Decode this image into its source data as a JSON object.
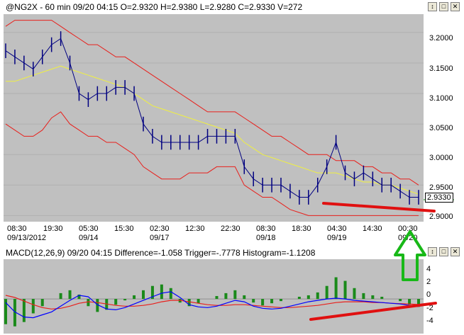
{
  "price_window": {
    "title": "@NG2X - 60 min 09/20 04:15 O=2.9320 H=2.9380 L=2.9280 C=2.9330 V=272",
    "y_ticks": [
      "3.2000",
      "3.1500",
      "3.1000",
      "3.0500",
      "3.0000",
      "2.9500",
      "2.9000"
    ],
    "last_price": "2.9330",
    "x_ticks": [
      "08:30",
      "19:30",
      "05:30",
      "15:30",
      "02:30",
      "12:30",
      "22:30",
      "08:30",
      "18:30",
      "04:30",
      "14:30",
      "00:30"
    ],
    "x_dates": [
      "09/13/2012",
      "09/14",
      "09/17",
      "09/18",
      "09/19",
      "09/20"
    ]
  },
  "macd_window": {
    "title": "MACD(12,26,9) 09/20 04:15 Difference=-1.058 Trigger=-.7778 Histogram=-1.1208",
    "y_ticks": [
      "4",
      "2",
      "0",
      "-2",
      "-4"
    ]
  },
  "buttons": {
    "scroll": "↕",
    "maximize": "□",
    "close": "✕"
  },
  "colors": {
    "plot_bg": "#c0c0c0",
    "price": "#000080",
    "bands": "#e8201c",
    "ma": "#f0f040",
    "macd": "#0000ff",
    "trigger": "#e8201c",
    "hist": "#1a8a1a",
    "annot_red": "#e01010",
    "annot_green": "#18b818"
  },
  "chart_data": [
    {
      "type": "line",
      "title": "@NG2X - 60 min",
      "ylim": [
        2.89,
        3.23
      ],
      "series": [
        {
          "values": [
            3.17,
            3.16,
            3.15,
            3.14,
            3.16,
            3.18,
            3.19,
            3.15,
            3.1,
            3.09,
            3.1,
            3.1,
            3.11,
            3.11,
            3.1,
            3.05,
            3.03,
            3.02,
            3.02,
            3.02,
            3.02,
            3.02,
            3.03,
            3.03,
            3.03,
            3.03,
            2.98,
            2.96,
            2.95,
            2.95,
            2.95,
            2.94,
            2.93,
            2.93,
            2.95,
            2.98,
            3.02,
            2.97,
            2.96,
            2.97,
            2.96,
            2.95,
            2.95,
            2.94,
            2.93,
            2.93
          ]
        },
        {
          "values": [
            3.21,
            3.22,
            3.22,
            3.22,
            3.22,
            3.22,
            3.21,
            3.2,
            3.19,
            3.18,
            3.18,
            3.17,
            3.16,
            3.16,
            3.15,
            3.14,
            3.13,
            3.12,
            3.11,
            3.1,
            3.09,
            3.08,
            3.07,
            3.07,
            3.07,
            3.07,
            3.06,
            3.05,
            3.04,
            3.03,
            3.03,
            3.02,
            3.01,
            3.0,
            3.0,
            3.0,
            2.99,
            2.99,
            2.99,
            2.98,
            2.98,
            2.97,
            2.97,
            2.96,
            2.96,
            2.95
          ]
        },
        {
          "values": [
            3.12,
            3.12,
            3.125,
            3.13,
            3.135,
            3.14,
            3.145,
            3.14,
            3.135,
            3.13,
            3.125,
            3.12,
            3.115,
            3.11,
            3.1,
            3.09,
            3.08,
            3.075,
            3.07,
            3.065,
            3.06,
            3.055,
            3.05,
            3.045,
            3.04,
            3.035,
            3.02,
            3.01,
            3.0,
            2.995,
            2.99,
            2.985,
            2.98,
            2.975,
            2.97,
            2.97,
            2.97,
            2.965,
            2.96,
            2.955,
            2.955,
            2.95,
            2.95,
            2.945,
            2.94,
            2.935
          ]
        },
        {
          "values": [
            3.05,
            3.04,
            3.03,
            3.03,
            3.04,
            3.06,
            3.07,
            3.05,
            3.04,
            3.03,
            3.03,
            3.02,
            3.02,
            3.01,
            3.0,
            2.98,
            2.97,
            2.96,
            2.96,
            2.96,
            2.97,
            2.97,
            2.97,
            2.98,
            2.98,
            2.98,
            2.95,
            2.94,
            2.93,
            2.93,
            2.92,
            2.91,
            2.905,
            2.9,
            2.9,
            2.9,
            2.9,
            2.9,
            2.9,
            2.9,
            2.9,
            2.9,
            2.9,
            2.9,
            2.9,
            2.9
          ]
        }
      ]
    },
    {
      "type": "bar",
      "title": "MACD(12,26,9)",
      "ylim": [
        -4.8,
        5.5
      ],
      "series": [
        {
          "values": [
            -3.5,
            -3.8,
            -3.2,
            -2.0,
            -1.0,
            0,
            0.8,
            1.2,
            0.6,
            -1.0,
            -1.8,
            -1.5,
            -0.8,
            -0.2,
            0.5,
            1.2,
            1.8,
            2.0,
            1.5,
            -0.5,
            -1.0,
            -0.6,
            0,
            0.4,
            0.8,
            1.2,
            0.5,
            -0.5,
            -0.9,
            -0.6,
            -0.3,
            0,
            0.3,
            0.5,
            0.9,
            1.8,
            3.0,
            2.5,
            1.5,
            0.8,
            0.5,
            0.3,
            0,
            -0.3,
            -0.8,
            -1.1
          ]
        },
        {
          "values": [
            -0.5,
            -1.8,
            -2.5,
            -2.6,
            -2.2,
            -1.8,
            -1.0,
            -0.2,
            0.5,
            0.3,
            -0.8,
            -1.4,
            -1.5,
            -1.2,
            -0.7,
            -0.2,
            0.3,
            0.8,
            1.0,
            0.2,
            -0.8,
            -1.1,
            -1.2,
            -1.0,
            -0.6,
            -0.2,
            -0.4,
            -1.0,
            -1.3,
            -1.4,
            -1.3,
            -1.0,
            -0.7,
            -0.4,
            -0.2,
            0,
            0.1,
            0,
            -0.2,
            -0.3,
            -0.4,
            -0.5,
            -0.6,
            -0.7,
            -0.9,
            -1.058
          ]
        },
        {
          "values": [
            0.5,
            0.2,
            -0.3,
            -0.8,
            -1.2,
            -1.4,
            -1.3,
            -1.0,
            -0.6,
            -0.4,
            -0.5,
            -0.7,
            -0.9,
            -1.0,
            -1.0,
            -0.9,
            -0.7,
            -0.4,
            -0.2,
            -0.2,
            -0.4,
            -0.6,
            -0.8,
            -0.9,
            -0.9,
            -0.8,
            -0.8,
            -0.9,
            -1.0,
            -1.1,
            -1.2,
            -1.2,
            -1.1,
            -1.0,
            -0.9,
            -0.7,
            -0.5,
            -0.4,
            -0.4,
            -0.4,
            -0.5,
            -0.5,
            -0.6,
            -0.65,
            -0.7,
            -0.7778
          ]
        }
      ]
    }
  ]
}
